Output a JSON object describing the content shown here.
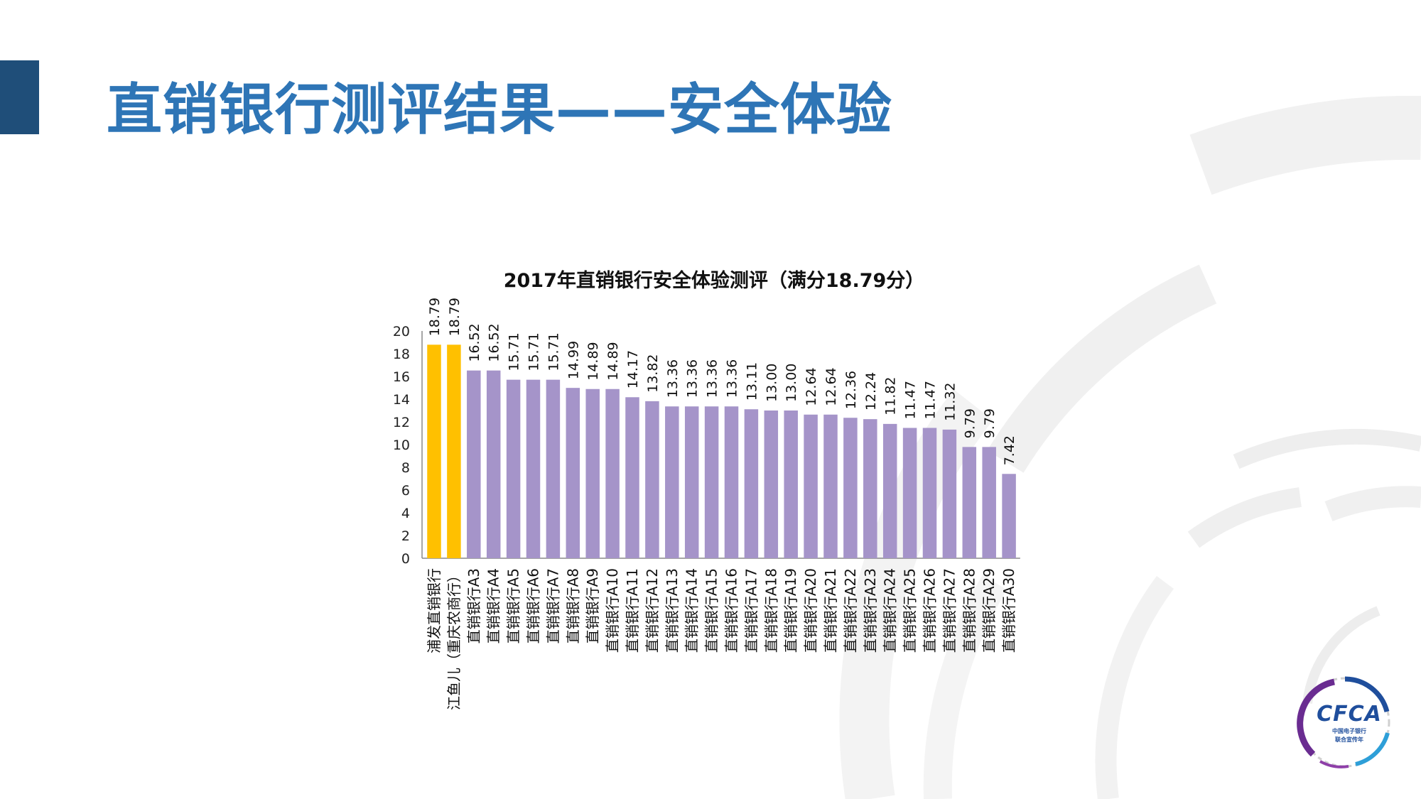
{
  "header": {
    "title": "直销银行测评结果——安全体验",
    "accent_color": "#1f4e79",
    "title_color": "#2e75b6"
  },
  "logo": {
    "text": "CFCA",
    "sub_line1": "中国电子银行",
    "sub_line2": "联合宣传年"
  },
  "chart_data": {
    "type": "bar",
    "title": "2017年直销银行安全体验测评（满分18.79分）",
    "xlabel": "",
    "ylabel": "",
    "ylim": [
      0,
      20
    ],
    "yticks": [
      0,
      2,
      4,
      6,
      8,
      10,
      12,
      14,
      16,
      18,
      20
    ],
    "grid": false,
    "highlight_color": "#ffc000",
    "bar_color": "#a594c9",
    "categories": [
      "浦发直销银行",
      "江鱼儿（重庆农商行）",
      "直销银行A3",
      "直销银行A4",
      "直销银行A5",
      "直销银行A6",
      "直销银行A7",
      "直销银行A8",
      "直销银行A9",
      "直销银行A10",
      "直销银行A11",
      "直销银行A12",
      "直销银行A13",
      "直销银行A14",
      "直销银行A15",
      "直销银行A16",
      "直销银行A17",
      "直销银行A18",
      "直销银行A19",
      "直销银行A20",
      "直销银行A21",
      "直销银行A22",
      "直销银行A23",
      "直销银行A24",
      "直销银行A25",
      "直销银行A26",
      "直销银行A27",
      "直销银行A28",
      "直销银行A29",
      "直销银行A30"
    ],
    "values": [
      18.79,
      18.79,
      16.52,
      16.52,
      15.71,
      15.71,
      15.71,
      14.99,
      14.89,
      14.89,
      14.17,
      13.82,
      13.36,
      13.36,
      13.36,
      13.36,
      13.11,
      13.0,
      13.0,
      12.64,
      12.64,
      12.36,
      12.24,
      11.82,
      11.47,
      11.47,
      11.32,
      9.79,
      9.79,
      7.42
    ],
    "value_labels": [
      "18.79",
      "18.79",
      "16.52",
      "16.52",
      "15.71",
      "15.71",
      "15.71",
      "14.99",
      "14.89",
      "14.89",
      "14.17",
      "13.82",
      "13.36",
      "13.36",
      "13.36",
      "13.36",
      "13.11",
      "13.00",
      "13.00",
      "12.64",
      "12.64",
      "12.36",
      "12.24",
      "11.82",
      "11.47",
      "11.47",
      "11.32",
      "9.79",
      "9.79",
      "7.42"
    ],
    "highlighted_count": 2
  }
}
